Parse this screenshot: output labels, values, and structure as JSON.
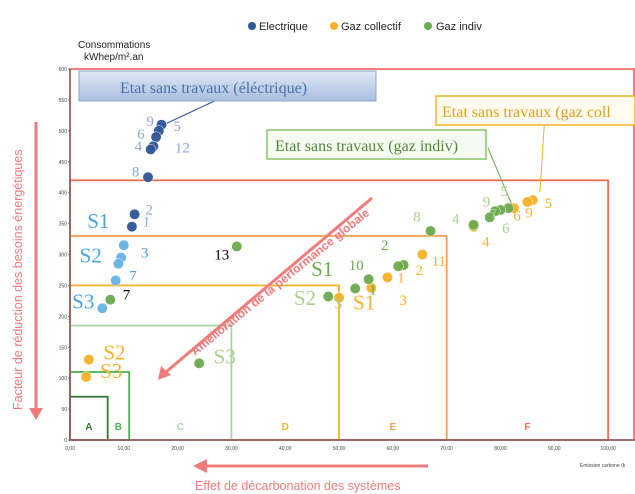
{
  "chart_data": {
    "type": "scatter",
    "title": "",
    "ylabel": "Consommations",
    "ylabel_unit": "kWhep/m².an",
    "xlabel": "Emission carbone (k",
    "xlim": [
      0,
      105
    ],
    "ylim": [
      0,
      600
    ],
    "x_ticks": [
      "0,00",
      "10,00",
      "20,00",
      "30,00",
      "40,00",
      "50,00",
      "60,00",
      "70,00",
      "80,00",
      "90,00",
      "100,00"
    ],
    "y_ticks": [
      "0",
      "50",
      "100",
      "150",
      "200",
      "250",
      "300",
      "350",
      "400",
      "450",
      "500",
      "550",
      "600"
    ],
    "legend": [
      {
        "name": "Electrique",
        "color": "#2f5597"
      },
      {
        "name": "Gaz collectif",
        "color": "#f5b227"
      },
      {
        "name": "Gaz indiv",
        "color": "#6aaa4c"
      }
    ],
    "classes": [
      {
        "label": "A",
        "x_max": 7,
        "y_max": 70,
        "color": "#2e7d32"
      },
      {
        "label": "B",
        "x_max": 11,
        "y_max": 110,
        "color": "#4caf50"
      },
      {
        "label": "C",
        "x_max": 30,
        "y_max": 185,
        "color": "#a5d6a7"
      },
      {
        "label": "D",
        "x_max": 50,
        "y_max": 250,
        "color": "#f5b227"
      },
      {
        "label": "E",
        "x_max": 70,
        "y_max": 330,
        "color": "#f0a050"
      },
      {
        "label": "F",
        "x_max": 100,
        "y_max": 420,
        "color": "#f07050"
      }
    ],
    "series": [
      {
        "name": "Electrique",
        "color": "#2f5597",
        "points": [
          {
            "x": 17,
            "y": 510,
            "label": "9"
          },
          {
            "x": 16.5,
            "y": 500,
            "label": "5"
          },
          {
            "x": 16,
            "y": 490,
            "label": "6"
          },
          {
            "x": 15.5,
            "y": 475,
            "label": "12"
          },
          {
            "x": 15,
            "y": 470,
            "label": "4"
          },
          {
            "x": 14.5,
            "y": 425,
            "label": "8"
          },
          {
            "x": 12,
            "y": 365,
            "label": "2"
          },
          {
            "x": 11.5,
            "y": 345,
            "label": "1"
          }
        ]
      },
      {
        "name": "Electrique S1/S2/S3",
        "color": "#66b3e3",
        "points": [
          {
            "x": 10,
            "y": 315,
            "label": "S1"
          },
          {
            "x": 9.5,
            "y": 295,
            "label": "3"
          },
          {
            "x": 9,
            "y": 285,
            "label": "S2"
          },
          {
            "x": 8.5,
            "y": 258,
            "label": "7"
          },
          {
            "x": 6,
            "y": 213,
            "label": "S3"
          }
        ]
      },
      {
        "name": "Gaz collectif",
        "color": "#f5b227",
        "points": [
          {
            "x": 86,
            "y": 388,
            "label": "5"
          },
          {
            "x": 85,
            "y": 385,
            "label": "9"
          },
          {
            "x": 82.5,
            "y": 375,
            "label": "6"
          },
          {
            "x": 75,
            "y": 345,
            "label": "4"
          },
          {
            "x": 65.5,
            "y": 300,
            "label": "11"
          },
          {
            "x": 62,
            "y": 282,
            "label": "2"
          },
          {
            "x": 59,
            "y": 263,
            "label": "1"
          },
          {
            "x": 56,
            "y": 246,
            "label": "3"
          },
          {
            "x": 50,
            "y": 230,
            "label": "S1"
          },
          {
            "x": 3.5,
            "y": 130,
            "label": "S2"
          },
          {
            "x": 3,
            "y": 102,
            "label": "S3"
          }
        ]
      },
      {
        "name": "Gaz indiv",
        "color": "#6aaa4c",
        "points": [
          {
            "x": 81.5,
            "y": 375,
            "label": "5"
          },
          {
            "x": 80,
            "y": 372,
            "label": "9"
          },
          {
            "x": 79,
            "y": 370,
            "label": "6"
          },
          {
            "x": 78,
            "y": 360,
            "label": "7"
          },
          {
            "x": 75,
            "y": 348,
            "label": "4"
          },
          {
            "x": 67,
            "y": 338,
            "label": "8"
          },
          {
            "x": 62,
            "y": 283,
            "label": "2"
          },
          {
            "x": 61,
            "y": 281,
            "label": "11"
          },
          {
            "x": 55.5,
            "y": 260,
            "label": "10"
          },
          {
            "x": 53,
            "y": 245,
            "label": "S1"
          },
          {
            "x": 31,
            "y": 313,
            "label": "13"
          },
          {
            "x": 7.5,
            "y": 227,
            "label": "7"
          },
          {
            "x": 48,
            "y": 232,
            "label": "S2"
          },
          {
            "x": 24,
            "y": 124,
            "label": "S3"
          }
        ]
      }
    ],
    "annotations": [
      "Etat sans travaux (éléctrique)",
      "Etat sans travaux (gaz coll",
      "Etat sans travaux (gaz indiv)",
      "Amélioration de la performance globale",
      "Facteur de réduction des besoins énergétiques",
      "Effet de décarbonation des systèmes"
    ]
  },
  "labels": {
    "left_axis_title": "Facteur de réduction des besoins énergétiques",
    "bottom_axis_title": "Effet de décarbonation des systèmes",
    "diagonal": "Amélioration de la performance globale",
    "box_elec": "Etat sans travaux (éléctrique)",
    "box_gaz_coll": "Etat sans travaux (gaz coll",
    "box_gaz_indiv": "Etat sans travaux (gaz indiv)",
    "ylabel_line1": "Consommations",
    "ylabel_line2": "kWhep/m².an",
    "xlabel": "Emission carbone (k"
  },
  "point_labels": [
    {
      "text": "9",
      "x": 14.2,
      "y": 508,
      "color": "#8fa8cf",
      "size": 15
    },
    {
      "text": "5",
      "x": 19.2,
      "y": 500,
      "color": "#8fa8cf",
      "size": 15
    },
    {
      "text": "6",
      "x": 12.5,
      "y": 487,
      "color": "#8fa8cf",
      "size": 15
    },
    {
      "text": "4",
      "x": 12.0,
      "y": 467,
      "color": "#8fa8cf",
      "size": 15
    },
    {
      "text": "12",
      "x": 19.5,
      "y": 465,
      "color": "#8fa8cf",
      "size": 15
    },
    {
      "text": "8",
      "x": 11.5,
      "y": 426,
      "color": "#8fa8cf",
      "size": 15
    },
    {
      "text": "2",
      "x": 14.0,
      "y": 365,
      "color": "#8fa8cf",
      "size": 15
    },
    {
      "text": "1",
      "x": 13.5,
      "y": 345,
      "color": "#8fa8cf",
      "size": 15
    },
    {
      "text": "S1",
      "x": 3.2,
      "y": 343,
      "color": "#4aa3dd",
      "size": 21
    },
    {
      "text": "3",
      "x": 13.2,
      "y": 295,
      "color": "#4aa3dd",
      "size": 15
    },
    {
      "text": "S2",
      "x": 1.8,
      "y": 287,
      "color": "#4aa3dd",
      "size": 21
    },
    {
      "text": "7",
      "x": 11.0,
      "y": 258,
      "color": "#4aa3dd",
      "size": 15
    },
    {
      "text": "S3",
      "x": 0.4,
      "y": 213,
      "color": "#4aa3dd",
      "size": 21
    },
    {
      "text": "7",
      "x": 9.8,
      "y": 227,
      "color": "#000000",
      "size": 15
    },
    {
      "text": "13",
      "x": 26.8,
      "y": 292,
      "color": "#000000",
      "size": 15
    },
    {
      "text": "S2",
      "x": 6.2,
      "y": 130,
      "color": "#f5b227",
      "size": 21
    },
    {
      "text": "S3",
      "x": 5.6,
      "y": 100,
      "color": "#f5b227",
      "size": 21
    },
    {
      "text": "S3",
      "x": 26.7,
      "y": 124,
      "color": "#a7d08c",
      "size": 21
    },
    {
      "text": "S1",
      "x": 44.8,
      "y": 265,
      "color": "#6aaa4c",
      "size": 21
    },
    {
      "text": "S2",
      "x": 41.6,
      "y": 218,
      "color": "#a7d08c",
      "size": 21
    },
    {
      "text": "3",
      "x": 49.2,
      "y": 213,
      "color": "#a7d08c",
      "size": 15
    },
    {
      "text": "S1",
      "x": 52.6,
      "y": 211,
      "color": "#f5b227",
      "size": 21
    },
    {
      "text": "10",
      "x": 51.8,
      "y": 275,
      "color": "#6aaa4c",
      "size": 15
    },
    {
      "text": "1",
      "x": 55.6,
      "y": 235,
      "color": "#6aaa4c",
      "size": 15
    },
    {
      "text": "2",
      "x": 57.8,
      "y": 307,
      "color": "#6aaa4c",
      "size": 15
    },
    {
      "text": "1",
      "x": 60.8,
      "y": 255,
      "color": "#f5b227",
      "size": 15
    },
    {
      "text": "2",
      "x": 64.2,
      "y": 267,
      "color": "#f5b227",
      "size": 15
    },
    {
      "text": "3",
      "x": 61.2,
      "y": 218,
      "color": "#f5b227",
      "size": 15
    },
    {
      "text": "11",
      "x": 67.2,
      "y": 281,
      "color": "#f5b227",
      "size": 15
    },
    {
      "text": "8",
      "x": 63.8,
      "y": 353,
      "color": "#a7d08c",
      "size": 15
    },
    {
      "text": "4",
      "x": 71.0,
      "y": 350,
      "color": "#a7d08c",
      "size": 15
    },
    {
      "text": "9",
      "x": 76.7,
      "y": 378,
      "color": "#a7d08c",
      "size": 15
    },
    {
      "text": "5",
      "x": 80.0,
      "y": 395,
      "color": "#a7d08c",
      "size": 15
    },
    {
      "text": "7",
      "x": 78.0,
      "y": 358,
      "color": "#a7d08c",
      "size": 15
    },
    {
      "text": "6",
      "x": 80.3,
      "y": 335,
      "color": "#a7d08c",
      "size": 15
    },
    {
      "text": "6",
      "x": 82.4,
      "y": 355,
      "color": "#f5b227",
      "size": 15
    },
    {
      "text": "9",
      "x": 84.6,
      "y": 360,
      "color": "#f5b227",
      "size": 15
    },
    {
      "text": "5",
      "x": 88.2,
      "y": 375,
      "color": "#f5b227",
      "size": 15
    },
    {
      "text": "4",
      "x": 76.6,
      "y": 313,
      "color": "#f5b227",
      "size": 15
    }
  ]
}
